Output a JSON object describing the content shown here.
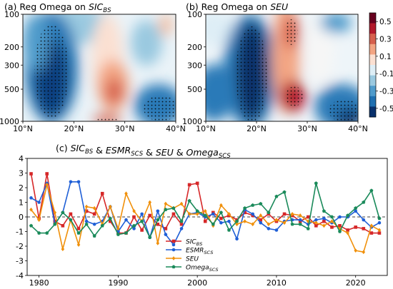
{
  "colors": {
    "sic": "#d62728",
    "esmr": "#1f5fd6",
    "seu": "#f0900a",
    "omega": "#1a8a5a",
    "colorbar": [
      "#08306b",
      "#1f6fb0",
      "#4f9bcb",
      "#9ac9e0",
      "#deeef6",
      "#fbe0d2",
      "#f3a583",
      "#d6604d",
      "#b2182b",
      "#67001f"
    ]
  },
  "chart_data": [
    {
      "type": "heatmap",
      "panel": "a",
      "title_prefix": "(a) Reg Omega on ",
      "title_var": "SIC",
      "title_sub": "BS",
      "x_ticks": [
        "10°N",
        "20°N",
        "30°N",
        "40°N"
      ],
      "y_ticks": [
        "100",
        "200",
        "300",
        "500",
        "1000"
      ],
      "xlim": [
        10,
        40
      ],
      "ylim": [
        1000,
        100
      ],
      "features": [
        {
          "kind": "negative",
          "lat_center": 16,
          "p_center": 500,
          "strength": "strong",
          "stippled": true
        },
        {
          "kind": "positive",
          "lat_center": 28,
          "p_center": 500,
          "strength": "moderate",
          "stippled": false
        },
        {
          "kind": "negative",
          "lat_center": 36,
          "p_center": 800,
          "strength": "moderate",
          "stippled": true
        },
        {
          "kind": "negative",
          "lat_center": 34,
          "p_center": 250,
          "strength": "weak",
          "stippled": false
        }
      ]
    },
    {
      "type": "heatmap",
      "panel": "b",
      "title_prefix": "(b) Reg Omega on ",
      "title_var": "SEU",
      "title_sub": "",
      "x_ticks": [
        "10°N",
        "20°N",
        "30°N",
        "40°N"
      ],
      "y_ticks": [
        "100",
        "200",
        "300",
        "500",
        "1000"
      ],
      "xlim": [
        10,
        40
      ],
      "ylim": [
        1000,
        100
      ],
      "features": [
        {
          "kind": "negative",
          "lat_center": 19,
          "p_center": 450,
          "strength": "strong",
          "stippled": true
        },
        {
          "kind": "positive",
          "lat_center": 27,
          "p_center": 600,
          "strength": "strong",
          "stippled": true
        },
        {
          "kind": "positive",
          "lat_center": 27,
          "p_center": 180,
          "strength": "strong",
          "stippled": true
        },
        {
          "kind": "negative",
          "lat_center": 36,
          "p_center": 700,
          "strength": "moderate",
          "stippled": true
        },
        {
          "kind": "negative",
          "lat_center": 35,
          "p_center": 120,
          "strength": "moderate",
          "stippled": false
        }
      ]
    },
    {
      "type": "colorbar",
      "ticks": [
        "0.5",
        "0.3",
        "0.1",
        "-0.1",
        "-0.3",
        "-0.5"
      ],
      "tick_values": [
        0.5,
        0.3,
        0.1,
        -0.1,
        -0.3,
        -0.5
      ],
      "range": [
        -0.6,
        0.6
      ]
    },
    {
      "type": "line",
      "title_text": "(c) SIC_BS & ESMR_SCS & SEU & Omega_SCS",
      "title_parts": [
        {
          "t": "(c) ",
          "it": false,
          "sub": ""
        },
        {
          "t": "SIC",
          "it": true,
          "sub": "BS"
        },
        {
          "t": " & ",
          "it": false,
          "sub": ""
        },
        {
          "t": "ESMR",
          "it": true,
          "sub": "SCS"
        },
        {
          "t": " & ",
          "it": false,
          "sub": ""
        },
        {
          "t": "SEU",
          "it": true,
          "sub": ""
        },
        {
          "t": " & ",
          "it": false,
          "sub": ""
        },
        {
          "t": "Omega",
          "it": true,
          "sub": "SCS"
        }
      ],
      "xlim": [
        1978.5,
        2024
      ],
      "ylim": [
        -4,
        4
      ],
      "x_ticks": [
        1980,
        1990,
        2000,
        2010,
        2020
      ],
      "y_ticks": [
        -4,
        -3,
        -2,
        -1,
        0,
        1,
        2,
        3,
        4
      ],
      "x": [
        1979,
        1980,
        1981,
        1982,
        1983,
        1984,
        1985,
        1986,
        1987,
        1988,
        1989,
        1990,
        1991,
        1992,
        1993,
        1994,
        1995,
        1996,
        1997,
        1998,
        1999,
        2000,
        2001,
        2002,
        2003,
        2004,
        2005,
        2006,
        2007,
        2008,
        2009,
        2010,
        2011,
        2012,
        2013,
        2014,
        2015,
        2016,
        2017,
        2018,
        2019,
        2020,
        2021,
        2022,
        2023
      ],
      "legend_position": "bottom-center",
      "series": [
        {
          "name": "SIC",
          "sub": "BS",
          "color_key": "sic",
          "marker": "square",
          "values": [
            2.95,
            -0.1,
            2.95,
            -0.3,
            -0.6,
            0.2,
            -0.8,
            0.4,
            0.2,
            1.6,
            -0.3,
            -1.1,
            -1.1,
            0.0,
            -0.9,
            0.1,
            -0.5,
            -0.8,
            0.2,
            -0.5,
            2.2,
            2.3,
            -0.3,
            0.3,
            -0.1,
            0.1,
            -0.2,
            0.3,
            0.1,
            -0.2,
            0.2,
            -0.3,
            0.2,
            0.1,
            -0.3,
            0.0,
            -0.6,
            -0.3,
            -0.7,
            -0.6,
            -0.9,
            -0.7,
            -0.8,
            -1.1,
            -1.1
          ]
        },
        {
          "name": "ESMR",
          "sub": "SCS",
          "color_key": "esmr",
          "marker": "circle",
          "values": [
            1.3,
            1.0,
            2.3,
            -0.5,
            0.3,
            2.4,
            2.4,
            -0.3,
            -0.5,
            -0.3,
            0.7,
            -1.0,
            -0.2,
            -0.8,
            0.2,
            -1.4,
            0.4,
            -1.2,
            -1.9,
            -0.8,
            0.2,
            0.3,
            0.0,
            0.2,
            -0.4,
            -0.3,
            -1.5,
            0.5,
            0.2,
            -0.4,
            -0.8,
            -0.9,
            -0.3,
            -0.2,
            -0.2,
            -0.5,
            -0.2,
            -0.1,
            -0.4,
            0.0,
            0.0,
            0.4,
            -0.2,
            -0.7,
            -0.4
          ]
        },
        {
          "name": "SEU",
          "sub": "",
          "color_key": "seu",
          "marker": "diamond",
          "values": [
            0.5,
            -0.2,
            2.2,
            0.3,
            -2.2,
            -0.2,
            -1.9,
            0.7,
            0.6,
            -0.5,
            0.7,
            -0.8,
            1.6,
            0.4,
            -0.3,
            1.0,
            -1.8,
            0.9,
            0.6,
            0.9,
            0.2,
            0.2,
            0.4,
            -0.6,
            0.8,
            0.2,
            -0.5,
            -0.3,
            -0.5,
            0.1,
            -0.5,
            -0.2,
            -0.4,
            0.2,
            0.1,
            -0.3,
            -0.4,
            -0.6,
            -0.3,
            -0.8,
            -1.1,
            -2.3,
            -2.4,
            -0.6,
            -0.9
          ]
        },
        {
          "name": "Omega",
          "sub": "SCS",
          "color_key": "omega",
          "marker": "pentagon",
          "values": [
            -0.6,
            -1.1,
            -1.1,
            -0.5,
            0.3,
            -0.2,
            -1.1,
            -0.5,
            -1.3,
            -0.6,
            -0.1,
            -1.2,
            -1.1,
            -0.6,
            -0.3,
            -1.4,
            -0.2,
            0.5,
            0.6,
            -0.3,
            1.1,
            0.4,
            0.1,
            -0.5,
            0.3,
            -0.9,
            -0.3,
            0.6,
            0.8,
            0.9,
            0.3,
            1.4,
            1.7,
            -0.5,
            -0.5,
            -0.8,
            2.3,
            0.4,
            0.0,
            -1.0,
            0.1,
            0.6,
            1.0,
            1.8,
            -0.1
          ]
        }
      ]
    }
  ]
}
